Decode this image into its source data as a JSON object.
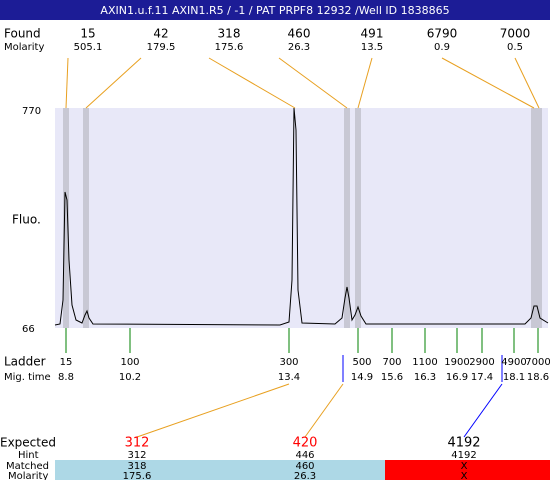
{
  "title": "AXIN1.u.f.11  AXIN1.R5 / -1 / PAT PRPF8 12932 /Well ID 1838865",
  "found": {
    "label": "Found",
    "molarity_label": "Molarity",
    "peaks": [
      {
        "size": "15",
        "molarity": "505.1"
      },
      {
        "size": "42",
        "molarity": "179.5"
      },
      {
        "size": "318",
        "molarity": "175.6"
      },
      {
        "size": "460",
        "molarity": "26.3"
      },
      {
        "size": "491",
        "molarity": "13.5"
      },
      {
        "size": "6790",
        "molarity": "0.9"
      },
      {
        "size": "7000",
        "molarity": "0.5"
      }
    ]
  },
  "y_axis": {
    "label": "Fluo.",
    "max": "770",
    "min": "66"
  },
  "ladder": {
    "label": "Ladder",
    "time_label": "Mig. time",
    "items": [
      {
        "size": "15",
        "time": "8.8"
      },
      {
        "size": "100",
        "time": "10.2"
      },
      {
        "size": "300",
        "time": "13.4"
      },
      {
        "size": "500",
        "time": "14.9"
      },
      {
        "size": "700",
        "time": "15.6"
      },
      {
        "size": "1100",
        "time": "16.3"
      },
      {
        "size": "1900",
        "time": "16.9"
      },
      {
        "size": "2900",
        "time": "17.4"
      },
      {
        "size": "4900",
        "time": "18.1"
      },
      {
        "size": "7000",
        "time": "18.6"
      }
    ]
  },
  "expected": {
    "label": "Expected",
    "hint_label": "Hint",
    "matched_label": "Matched",
    "molarity_label": "Molarity",
    "items": [
      {
        "expected": "312",
        "hint": "312",
        "matched": "318",
        "molarity": "175.6"
      },
      {
        "expected": "420",
        "hint": "446",
        "matched": "460",
        "molarity": "26.3"
      },
      {
        "expected": "4192",
        "hint": "4192",
        "matched": "X",
        "molarity": "X"
      }
    ]
  }
}
